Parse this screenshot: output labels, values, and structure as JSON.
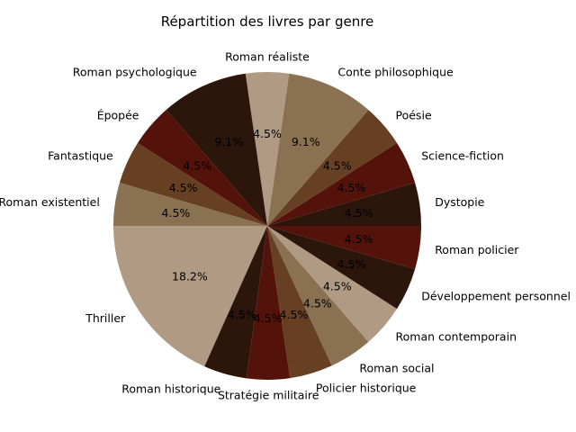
{
  "chart_data": {
    "type": "pie",
    "title": "Répartition des livres par genre",
    "start_angle_deg": 0,
    "direction": "counterclockwise",
    "legend": "none",
    "slices": [
      {
        "label": "Dystopie",
        "value": 4.5,
        "pct_label": "4.5%",
        "color": "#2c150b"
      },
      {
        "label": "Science-fiction",
        "value": 4.5,
        "pct_label": "4.5%",
        "color": "#54130a"
      },
      {
        "label": "Poésie",
        "value": 4.5,
        "pct_label": "4.5%",
        "color": "#673f22"
      },
      {
        "label": "Conte philosophique",
        "value": 9.1,
        "pct_label": "9.1%",
        "color": "#8a7152"
      },
      {
        "label": "Roman réaliste",
        "value": 4.5,
        "pct_label": "4.5%",
        "color": "#b09a83"
      },
      {
        "label": "Roman psychologique",
        "value": 9.1,
        "pct_label": "9.1%",
        "color": "#2c150b"
      },
      {
        "label": "Épopée",
        "value": 4.5,
        "pct_label": "4.5%",
        "color": "#54130a"
      },
      {
        "label": "Fantastique",
        "value": 4.5,
        "pct_label": "4.5%",
        "color": "#673f22"
      },
      {
        "label": "Roman existentiel",
        "value": 4.5,
        "pct_label": "4.5%",
        "color": "#8a7152"
      },
      {
        "label": "Thriller",
        "value": 18.2,
        "pct_label": "18.2%",
        "color": "#b09a83"
      },
      {
        "label": "Roman historique",
        "value": 4.5,
        "pct_label": "4.5%",
        "color": "#2c150b"
      },
      {
        "label": "Stratégie militaire",
        "value": 4.5,
        "pct_label": "4.5%",
        "color": "#54130a"
      },
      {
        "label": "Policier historique",
        "value": 4.5,
        "pct_label": "4.5%",
        "color": "#673f22"
      },
      {
        "label": "Roman social",
        "value": 4.5,
        "pct_label": "4.5%",
        "color": "#8a7152"
      },
      {
        "label": "Roman contemporain",
        "value": 4.5,
        "pct_label": "4.5%",
        "color": "#b09a83"
      },
      {
        "label": "Développement personnel",
        "value": 4.5,
        "pct_label": "4.5%",
        "color": "#2c150b"
      },
      {
        "label": "Roman policier",
        "value": 4.5,
        "pct_label": "4.5%",
        "color": "#54130a"
      }
    ]
  }
}
